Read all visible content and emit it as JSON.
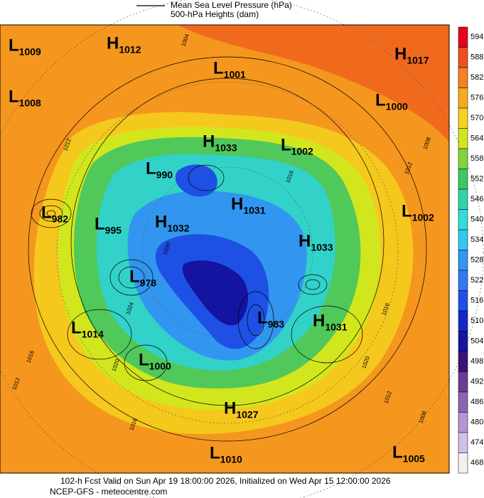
{
  "legend": {
    "line1": "Mean Sea Level Pressure (hPa)",
    "line2": "500-hPa Heights (dam)"
  },
  "centers": [
    {
      "letter": "L",
      "value": 1009
    },
    {
      "letter": "H",
      "value": 1012
    },
    {
      "letter": "L",
      "value": 1001
    },
    {
      "letter": "H",
      "value": 1017
    },
    {
      "letter": "L",
      "value": 1008
    },
    {
      "letter": "L",
      "value": 1000
    },
    {
      "letter": "H",
      "value": 1033
    },
    {
      "letter": "L",
      "value": 1002
    },
    {
      "letter": "L",
      "value": 990
    },
    {
      "letter": "H",
      "value": 1031
    },
    {
      "letter": "L",
      "value": 1002
    },
    {
      "letter": "L",
      "value": 982
    },
    {
      "letter": "L",
      "value": 995
    },
    {
      "letter": "H",
      "value": 1032
    },
    {
      "letter": "H",
      "value": 1033
    },
    {
      "letter": "L",
      "value": 978
    },
    {
      "letter": "L",
      "value": 983
    },
    {
      "letter": "H",
      "value": 1031
    },
    {
      "letter": "L",
      "value": 1014
    },
    {
      "letter": "L",
      "value": 1000
    },
    {
      "letter": "H",
      "value": 1027
    },
    {
      "letter": "L",
      "value": 1010
    },
    {
      "letter": "L",
      "value": 1005
    }
  ],
  "isobar_labels": [
    1012,
    1004,
    1012,
    1008,
    1016,
    1020,
    1024,
    1020,
    1016,
    1012,
    1016,
    1020,
    1016,
    1012,
    1008
  ],
  "colorbar": {
    "ticks": [
      594,
      588,
      582,
      576,
      570,
      564,
      558,
      552,
      546,
      540,
      534,
      528,
      522,
      516,
      510,
      504,
      498,
      492,
      486,
      480,
      474,
      468
    ],
    "colors": [
      "#e8001c",
      "#f0501e",
      "#f5821e",
      "#f5aa1e",
      "#f5d21e",
      "#d2e61e",
      "#82d23c",
      "#3cc864",
      "#32d2aa",
      "#32dcdc",
      "#32c8f0",
      "#3296f0",
      "#3278f0",
      "#1e50e6",
      "#1428c8",
      "#1414a0",
      "#3c1478",
      "#6e3c96",
      "#8c64b4",
      "#b496d2",
      "#d2bee6",
      "#f0f0f0"
    ]
  },
  "footer": {
    "line1": "102-h Fcst Valid on Sun Apr 19 18:00:00 2026, Initialized on Wed Apr 15 12:00:00 2026",
    "line2": "NCEP-GFS - meteocentre.com"
  }
}
